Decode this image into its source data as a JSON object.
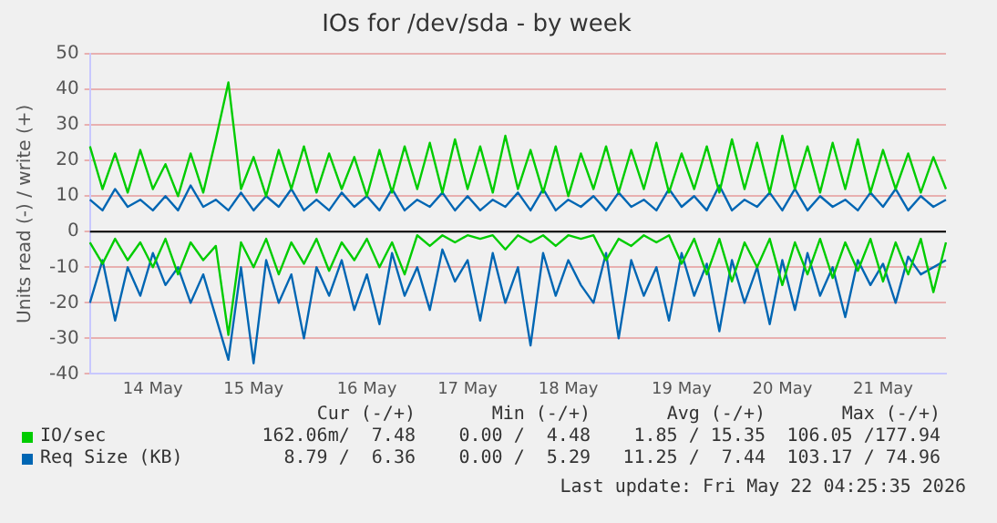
{
  "chart_data": {
    "type": "line",
    "title": "IOs for /dev/sda - by week",
    "ylabel": "Units read (-) / write (+)",
    "categories": [
      null,
      null,
      null,
      null,
      null,
      "14 May",
      null,
      null,
      null,
      null,
      null,
      null,
      null,
      "15 May",
      null,
      null,
      null,
      null,
      null,
      null,
      null,
      null,
      "16 May",
      null,
      null,
      null,
      null,
      null,
      null,
      null,
      "17 May",
      null,
      null,
      null,
      null,
      null,
      null,
      null,
      "18 May",
      null,
      null,
      null,
      null,
      null,
      null,
      null,
      null,
      "19 May",
      null,
      null,
      null,
      null,
      null,
      null,
      null,
      "20 May",
      null,
      null,
      null,
      null,
      null,
      null,
      null,
      "21 May",
      null,
      null,
      null,
      null,
      null
    ],
    "series": [
      {
        "name": "IO/sec",
        "color": "#00cc00",
        "values": [
          24,
          12,
          22,
          11,
          23,
          12,
          19,
          10,
          22,
          11,
          26,
          42,
          12,
          21,
          10,
          23,
          12,
          24,
          11,
          22,
          12,
          21,
          10,
          23,
          11,
          24,
          12,
          25,
          11,
          26,
          12,
          24,
          11,
          27,
          12,
          23,
          11,
          24,
          10,
          22,
          12,
          24,
          11,
          23,
          12,
          25,
          11,
          22,
          12,
          24,
          11,
          26,
          12,
          25,
          11,
          27,
          12,
          24,
          11,
          25,
          12,
          26,
          11,
          23,
          12,
          22,
          11,
          21,
          12
        ]
      },
      {
        "color": "#00cc00",
        "values": [
          -3,
          -9,
          -2,
          -8,
          -3,
          -10,
          -2,
          -12,
          -3,
          -8,
          -4,
          -29,
          -3,
          -10,
          -2,
          -12,
          -3,
          -9,
          -2,
          -11,
          -3,
          -8,
          -2,
          -10,
          -3,
          -12,
          -1,
          -4,
          -1,
          -3,
          -1,
          -2,
          -1,
          -5,
          -1,
          -3,
          -1,
          -4,
          -1,
          -2,
          -1,
          -8,
          -2,
          -4,
          -1,
          -3,
          -1,
          -9,
          -2,
          -12,
          -2,
          -14,
          -3,
          -10,
          -2,
          -15,
          -3,
          -12,
          -2,
          -13,
          -3,
          -11,
          -2,
          -14,
          -3,
          -12,
          -2,
          -17,
          -3
        ]
      },
      {
        "name": "Req Size (KB)",
        "color": "#0066b3",
        "values": [
          9,
          6,
          12,
          7,
          9,
          6,
          10,
          6,
          13,
          7,
          9,
          6,
          11,
          6,
          10,
          7,
          12,
          6,
          9,
          6,
          11,
          7,
          10,
          6,
          12,
          6,
          9,
          7,
          11,
          6,
          10,
          6,
          9,
          7,
          11,
          6,
          12,
          6,
          9,
          7,
          10,
          6,
          11,
          7,
          9,
          6,
          12,
          7,
          10,
          6,
          13,
          6,
          9,
          7,
          11,
          6,
          12,
          6,
          10,
          7,
          9,
          6,
          11,
          7,
          12,
          6,
          10,
          7,
          9
        ]
      },
      {
        "color": "#0066b3",
        "values": [
          -20,
          -8,
          -25,
          -10,
          -18,
          -6,
          -15,
          -10,
          -20,
          -12,
          -24,
          -36,
          -10,
          -37,
          -8,
          -20,
          -12,
          -30,
          -10,
          -18,
          -8,
          -22,
          -12,
          -26,
          -6,
          -18,
          -10,
          -22,
          -5,
          -14,
          -8,
          -25,
          -6,
          -20,
          -10,
          -32,
          -6,
          -18,
          -8,
          -15,
          -20,
          -6,
          -30,
          -8,
          -18,
          -10,
          -25,
          -6,
          -18,
          -9,
          -28,
          -8,
          -20,
          -10,
          -26,
          -8,
          -22,
          -6,
          -18,
          -10,
          -24,
          -8,
          -15,
          -9,
          -20,
          -7,
          -12,
          -10,
          -8
        ]
      }
    ],
    "ylim": [
      -40,
      50
    ],
    "yticks": [
      -40,
      -30,
      -20,
      -10,
      0,
      10,
      20,
      30,
      40,
      50
    ],
    "ref_lines": [
      {
        "axis": "y",
        "value": 0,
        "color": "#000000"
      }
    ],
    "grid": "y",
    "legend": "bottom",
    "marker": "none",
    "line_style": "solid",
    "annotations": [
      "Cur (-/+)",
      "Min (-/+)",
      "Avg (-/+)",
      "Max (-/+)",
      "162.06m/  7.48",
      "0.00 /  4.48",
      "1.85 / 15.35",
      "106.05 /177.94",
      "8.79 /  6.36",
      "0.00 /  5.29",
      "11.25 /  7.44",
      "103.17 / 74.96",
      "Last update: Fri May 22 04:25:35 2026"
    ]
  }
}
